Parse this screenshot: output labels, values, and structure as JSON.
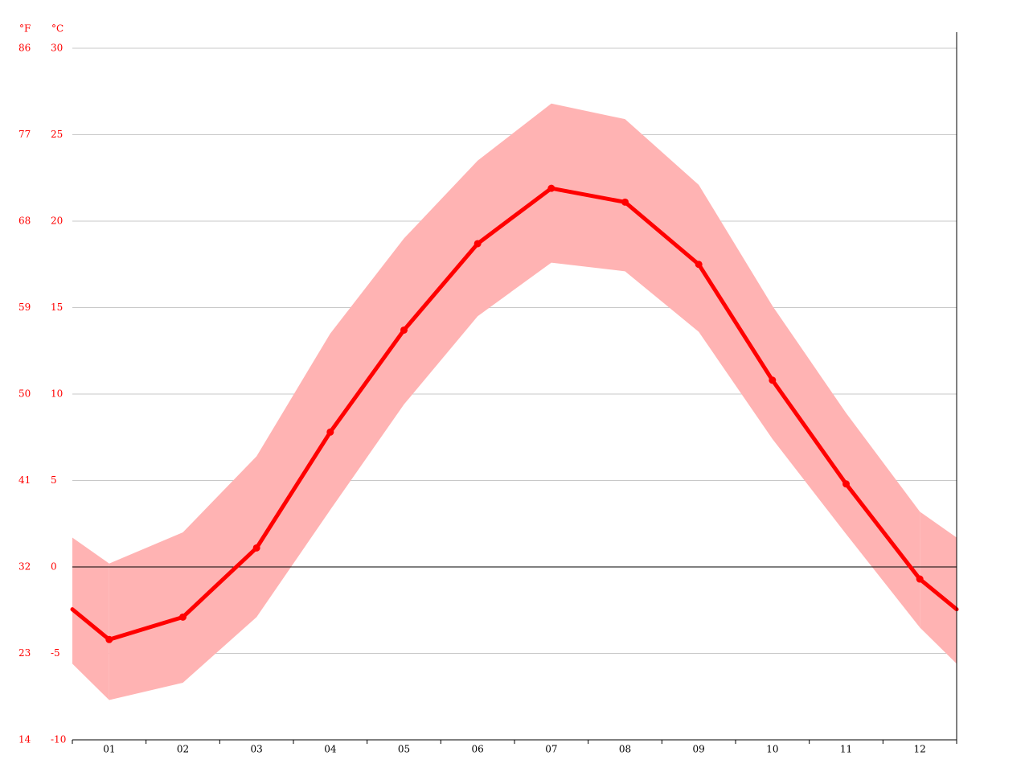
{
  "chart_data": {
    "type": "line",
    "y_axis_label": "°C",
    "y2_axis_label": "°F",
    "categories": [
      "01",
      "02",
      "03",
      "04",
      "05",
      "06",
      "07",
      "08",
      "09",
      "10",
      "11",
      "12"
    ],
    "series": [
      {
        "color": "#ff0000",
        "values": [
          -4.2,
          -2.9,
          1.1,
          7.8,
          13.7,
          18.7,
          21.9,
          21.1,
          17.5,
          10.8,
          4.8,
          -0.7
        ]
      }
    ],
    "band": {
      "color": "#ffb3b3",
      "high": [
        0.2,
        2.0,
        6.4,
        13.5,
        19.0,
        23.5,
        26.8,
        25.9,
        22.1,
        15.1,
        8.9,
        3.2
      ],
      "low": [
        -7.7,
        -6.7,
        -2.9,
        3.3,
        9.4,
        14.5,
        17.6,
        17.1,
        13.6,
        7.4,
        1.9,
        -3.5
      ]
    },
    "ylim": [
      -10,
      30
    ],
    "yticks": [
      -10,
      -5,
      0,
      5,
      10,
      15,
      20,
      25,
      30
    ],
    "y2lim": [
      14,
      86
    ],
    "y2ticks": [
      14,
      23,
      32,
      41,
      50,
      59,
      68,
      77,
      86
    ],
    "grid": true,
    "tick_color": "#ff0000"
  }
}
